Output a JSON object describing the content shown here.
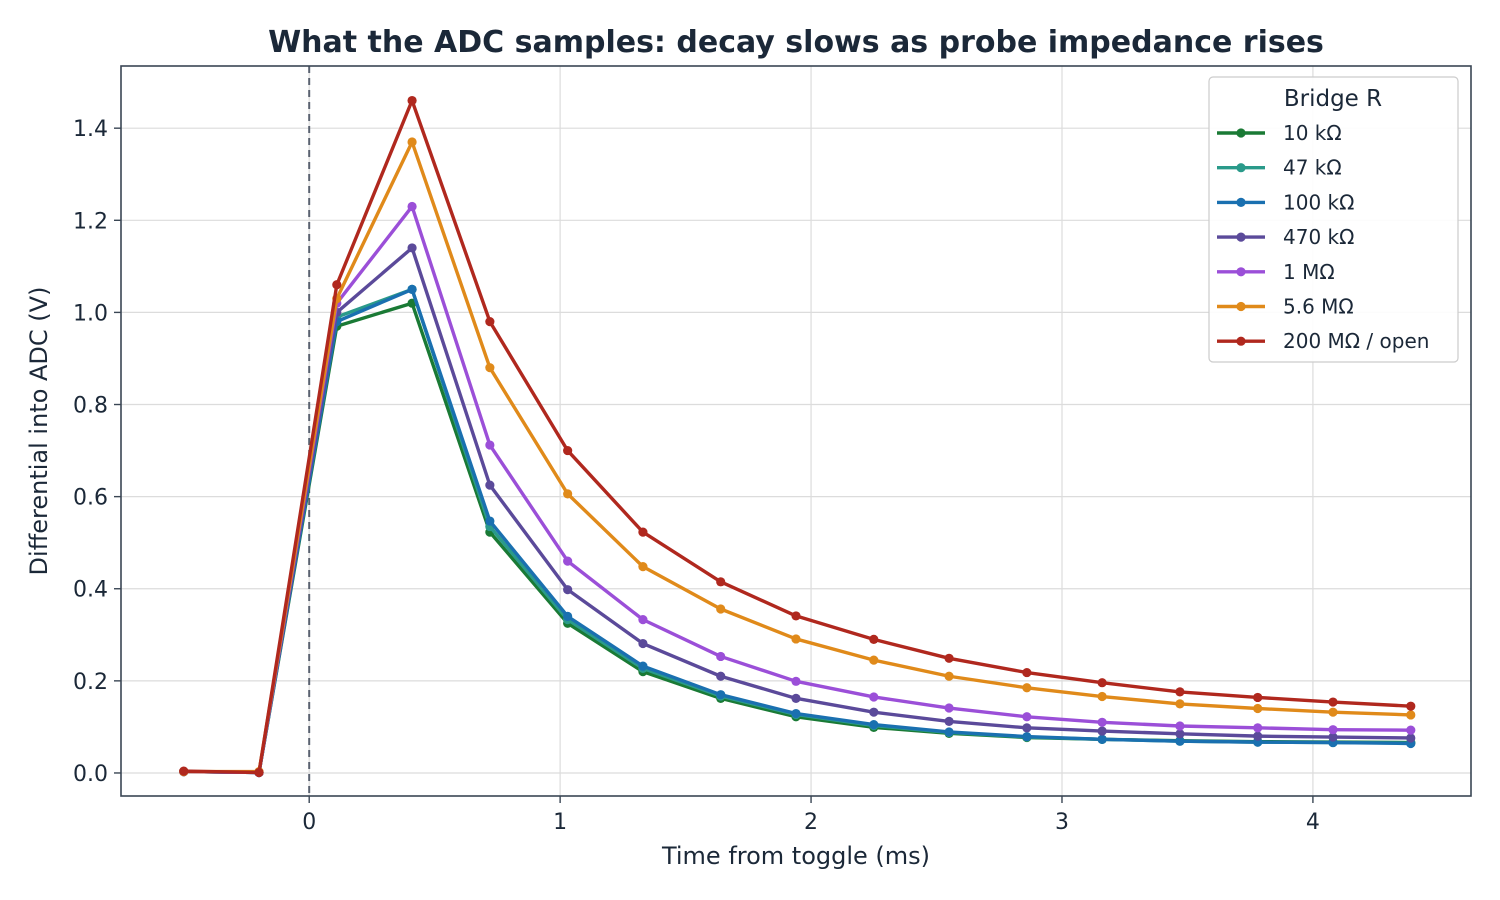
{
  "chart_data": {
    "type": "line",
    "title": "What the ADC samples: decay slows as probe impedance rises",
    "xlabel": "Time from toggle (ms)",
    "ylabel": "Differential into ADC  (V)",
    "xlim": [
      -0.75,
      4.63
    ],
    "ylim": [
      -0.05,
      1.535
    ],
    "xticks": [
      0,
      1,
      2,
      3,
      4
    ],
    "yticks": [
      0.0,
      0.2,
      0.4,
      0.6,
      0.8,
      1.0,
      1.2,
      1.4
    ],
    "xtick_labels": [
      "0",
      "1",
      "2",
      "3",
      "4"
    ],
    "ytick_labels": [
      "0.0",
      "0.2",
      "0.4",
      "0.6",
      "0.8",
      "1.0",
      "1.2",
      "1.4"
    ],
    "grid": true,
    "vline": {
      "x": 0,
      "style": "dashed"
    },
    "legend": {
      "title": "Bridge R",
      "position": "top-right"
    },
    "x": [
      -0.5,
      -0.2,
      0.11,
      0.41,
      0.72,
      1.03,
      1.33,
      1.64,
      1.94,
      2.25,
      2.55,
      2.86,
      3.16,
      3.47,
      3.78,
      4.08,
      4.39
    ],
    "series": [
      {
        "name": "10 kΩ",
        "color": "#1a7a35",
        "values": [
          0.003,
          0.001,
          0.97,
          1.02,
          0.523,
          0.325,
          0.22,
          0.162,
          0.122,
          0.099,
          0.086,
          0.077,
          0.073,
          0.07,
          0.068,
          0.067,
          0.066
        ]
      },
      {
        "name": "47 kΩ",
        "color": "#2a9a8a",
        "values": [
          0.003,
          0.001,
          0.99,
          1.05,
          0.535,
          0.333,
          0.227,
          0.167,
          0.127,
          0.103,
          0.088,
          0.078,
          0.073,
          0.069,
          0.067,
          0.066,
          0.065
        ]
      },
      {
        "name": "100 kΩ",
        "color": "#1a70b0",
        "values": [
          0.003,
          0.001,
          0.98,
          1.05,
          0.547,
          0.34,
          0.232,
          0.17,
          0.129,
          0.105,
          0.089,
          0.079,
          0.073,
          0.069,
          0.067,
          0.066,
          0.064
        ]
      },
      {
        "name": "470 kΩ",
        "color": "#5b4a9a",
        "values": [
          0.003,
          0.001,
          1.0,
          1.14,
          0.625,
          0.398,
          0.281,
          0.21,
          0.162,
          0.132,
          0.112,
          0.098,
          0.091,
          0.085,
          0.08,
          0.078,
          0.076
        ]
      },
      {
        "name": "1 MΩ",
        "color": "#9b4fd8",
        "values": [
          0.003,
          0.001,
          1.02,
          1.23,
          0.712,
          0.46,
          0.333,
          0.253,
          0.199,
          0.165,
          0.141,
          0.122,
          0.11,
          0.102,
          0.098,
          0.094,
          0.093
        ]
      },
      {
        "name": "5.6 MΩ",
        "color": "#e08a1a",
        "values": [
          0.003,
          0.003,
          1.03,
          1.37,
          0.88,
          0.606,
          0.448,
          0.356,
          0.291,
          0.245,
          0.21,
          0.185,
          0.166,
          0.15,
          0.14,
          0.132,
          0.126
        ]
      },
      {
        "name": "200 MΩ / open",
        "color": "#b0281e",
        "values": [
          0.004,
          0.001,
          1.06,
          1.46,
          0.98,
          0.7,
          0.523,
          0.415,
          0.341,
          0.29,
          0.249,
          0.218,
          0.196,
          0.176,
          0.164,
          0.154,
          0.145
        ]
      }
    ]
  }
}
